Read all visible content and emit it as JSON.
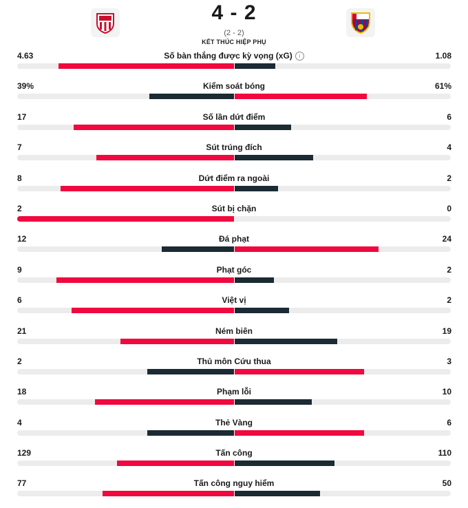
{
  "match": {
    "score": "4 - 2",
    "aggregate": "(2 - 2)",
    "status": "KẾT THÚC HIỆP PHỤ",
    "home_crest": "athletic-bilbao-crest",
    "away_crest": "fc-barcelona-crest"
  },
  "colors": {
    "winner": "#f0083e",
    "loser": "#1b2a33",
    "track": "#ececec"
  },
  "stats": [
    {
      "label": "Số bàn thắng được kỳ vọng (xG)",
      "home": "4.63",
      "away": "1.08",
      "home_val": 4.63,
      "away_val": 1.08,
      "info": true
    },
    {
      "label": "Kiểm soát bóng",
      "home": "39%",
      "away": "61%",
      "home_val": 39,
      "away_val": 61
    },
    {
      "label": "Số lần dứt điểm",
      "home": "17",
      "away": "6",
      "home_val": 17,
      "away_val": 6
    },
    {
      "label": "Sút trúng đích",
      "home": "7",
      "away": "4",
      "home_val": 7,
      "away_val": 4
    },
    {
      "label": "Dứt điểm ra ngoài",
      "home": "8",
      "away": "2",
      "home_val": 8,
      "away_val": 2
    },
    {
      "label": "Sút bị chặn",
      "home": "2",
      "away": "0",
      "home_val": 2,
      "away_val": 0
    },
    {
      "label": "Đá phạt",
      "home": "12",
      "away": "24",
      "home_val": 12,
      "away_val": 24
    },
    {
      "label": "Phạt góc",
      "home": "9",
      "away": "2",
      "home_val": 9,
      "away_val": 2
    },
    {
      "label": "Việt vị",
      "home": "6",
      "away": "2",
      "home_val": 6,
      "away_val": 2
    },
    {
      "label": "Ném biên",
      "home": "21",
      "away": "19",
      "home_val": 21,
      "away_val": 19
    },
    {
      "label": "Thủ môn Cứu thua",
      "home": "2",
      "away": "3",
      "home_val": 2,
      "away_val": 3
    },
    {
      "label": "Phạm lỗi",
      "home": "18",
      "away": "10",
      "home_val": 18,
      "away_val": 10
    },
    {
      "label": "Thẻ Vàng",
      "home": "4",
      "away": "6",
      "home_val": 4,
      "away_val": 6
    },
    {
      "label": "Tấn công",
      "home": "129",
      "away": "110",
      "home_val": 129,
      "away_val": 110
    },
    {
      "label": "Tấn công nguy hiểm",
      "home": "77",
      "away": "50",
      "home_val": 77,
      "away_val": 50
    }
  ]
}
